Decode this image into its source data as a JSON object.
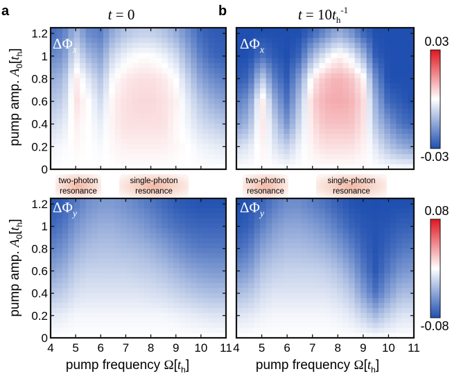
{
  "colors": {
    "low": "#1f4fb0",
    "mid": "#ffffff",
    "high": "#e01520",
    "resonance_fill": "#f2b9a6"
  },
  "panels": {
    "a": {
      "letter": "a",
      "title_var": "t",
      "title_eq": " = 0",
      "title_sup": ""
    },
    "b": {
      "letter": "b",
      "title_var": "t",
      "title_eq": " = 10",
      "title_base": "t",
      "title_sub": "h",
      "title_sup": "-1"
    }
  },
  "quantities": {
    "x": {
      "symbol": "ΔΦ",
      "sub": "x"
    },
    "y": {
      "symbol": "ΔΦ",
      "sub": "y"
    }
  },
  "resonances": {
    "two_photon": {
      "line1": "two-photon",
      "line2": "resonance"
    },
    "single_photon": {
      "line1": "single-photon",
      "line2": "resonance"
    }
  },
  "axes": {
    "ylabel": {
      "pre": "pump amp. ",
      "var": "A",
      "var_sub": "0",
      "bracket_open": "[",
      "unit": "t",
      "unit_sub": "h",
      "bracket_close": "]"
    },
    "xlabel": {
      "pre": "pump frequency ",
      "var": "Ω",
      "bracket_open": "[",
      "unit": "t",
      "unit_sub": "h",
      "bracket_close": "]"
    },
    "yticks": [
      "0",
      "0.2",
      "0.4",
      "0.6",
      "0.8",
      "1",
      "1.2"
    ],
    "xticks": [
      "4",
      "5",
      "6",
      "7",
      "8",
      "9",
      "10",
      "11"
    ]
  },
  "colorbars": {
    "x": {
      "max_label": "0.03",
      "min_label": "-0.03"
    },
    "y": {
      "max_label": "0.08",
      "min_label": "-0.08"
    }
  },
  "chart_data": [
    {
      "type": "heatmap",
      "panel": "a",
      "quantity": "ΔΦ_x",
      "time": "t = 0",
      "x_range": [
        4,
        11
      ],
      "y_range": [
        0,
        1.25
      ],
      "clim": [
        -0.03,
        0.03
      ],
      "x": [
        4.0,
        4.5,
        5.0,
        5.5,
        6.0,
        6.5,
        7.0,
        7.5,
        8.0,
        8.5,
        9.0,
        9.5,
        10.0,
        10.5,
        11.0
      ],
      "y": [
        0.0,
        0.2,
        0.4,
        0.6,
        0.8,
        1.0,
        1.2
      ],
      "z": [
        [
          0.0,
          0.0,
          0.0,
          0.0,
          0.0,
          0.0,
          0.0,
          0.0,
          0.0,
          0.0,
          0.0,
          0.0,
          0.0,
          0.0,
          0.0
        ],
        [
          -0.002,
          -0.001,
          0.001,
          0.0,
          -0.001,
          0.001,
          0.002,
          0.002,
          0.002,
          0.002,
          0.001,
          0.0,
          -0.002,
          -0.003,
          -0.004
        ],
        [
          -0.006,
          -0.004,
          0.002,
          0.0,
          -0.003,
          0.002,
          0.004,
          0.004,
          0.004,
          0.004,
          0.001,
          -0.002,
          -0.006,
          -0.008,
          -0.01
        ],
        [
          -0.01,
          -0.008,
          0.004,
          0.0,
          -0.006,
          0.002,
          0.004,
          0.005,
          0.005,
          0.004,
          0.002,
          -0.004,
          -0.01,
          -0.014,
          -0.016
        ],
        [
          -0.014,
          -0.012,
          0.003,
          -0.004,
          -0.01,
          0.0,
          0.003,
          0.004,
          0.004,
          0.003,
          0.0,
          -0.008,
          -0.016,
          -0.02,
          -0.022
        ],
        [
          -0.02,
          -0.018,
          -0.004,
          -0.012,
          -0.016,
          -0.006,
          -0.002,
          0.0,
          0.0,
          -0.002,
          -0.006,
          -0.014,
          -0.022,
          -0.026,
          -0.027
        ],
        [
          -0.025,
          -0.022,
          -0.012,
          -0.02,
          -0.022,
          -0.014,
          -0.01,
          -0.008,
          -0.008,
          -0.01,
          -0.014,
          -0.02,
          -0.026,
          -0.028,
          -0.028
        ]
      ]
    },
    {
      "type": "heatmap",
      "panel": "b",
      "quantity": "ΔΦ_x",
      "time": "t = 10 t_h^-1",
      "x_range": [
        4,
        11
      ],
      "y_range": [
        0,
        1.25
      ],
      "clim": [
        -0.03,
        0.03
      ],
      "x": [
        4.0,
        4.5,
        5.0,
        5.5,
        6.0,
        6.5,
        7.0,
        7.5,
        8.0,
        8.5,
        9.0,
        9.5,
        10.0,
        10.5,
        11.0
      ],
      "y": [
        0.0,
        0.2,
        0.4,
        0.6,
        0.8,
        1.0,
        1.2
      ],
      "z": [
        [
          0.0,
          0.0,
          0.0,
          0.0,
          0.0,
          0.0,
          0.0,
          0.0,
          0.0,
          0.0,
          0.0,
          0.0,
          0.0,
          0.0,
          0.0
        ],
        [
          -0.006,
          -0.004,
          0.002,
          -0.004,
          -0.008,
          -0.002,
          0.002,
          0.004,
          0.004,
          0.004,
          0.002,
          -0.004,
          -0.01,
          -0.014,
          -0.016
        ],
        [
          -0.016,
          -0.012,
          0.004,
          -0.008,
          -0.018,
          -0.006,
          0.004,
          0.008,
          0.008,
          0.008,
          0.004,
          -0.01,
          -0.018,
          -0.024,
          -0.026
        ],
        [
          -0.022,
          -0.018,
          0.004,
          -0.014,
          -0.024,
          -0.01,
          0.006,
          0.01,
          0.011,
          0.01,
          0.005,
          -0.014,
          -0.026,
          -0.028,
          -0.03
        ],
        [
          -0.028,
          -0.026,
          -0.008,
          -0.022,
          -0.028,
          -0.016,
          0.002,
          0.008,
          0.01,
          0.008,
          0.002,
          -0.02,
          -0.03,
          -0.03,
          -0.03
        ],
        [
          -0.03,
          -0.03,
          -0.024,
          -0.028,
          -0.03,
          -0.026,
          -0.012,
          -0.004,
          0.002,
          -0.002,
          -0.012,
          -0.028,
          -0.03,
          -0.03,
          -0.03
        ],
        [
          -0.03,
          -0.03,
          -0.03,
          -0.03,
          -0.03,
          -0.03,
          -0.026,
          -0.02,
          -0.014,
          -0.018,
          -0.026,
          -0.03,
          -0.03,
          -0.03,
          -0.03
        ]
      ]
    },
    {
      "type": "heatmap",
      "panel": "a",
      "quantity": "ΔΦ_y",
      "time": "t = 0",
      "x_range": [
        4,
        11
      ],
      "y_range": [
        0,
        1.25
      ],
      "clim": [
        -0.08,
        0.08
      ],
      "x": [
        4.0,
        4.5,
        5.0,
        5.5,
        6.0,
        6.5,
        7.0,
        7.5,
        8.0,
        8.5,
        9.0,
        9.5,
        10.0,
        10.5,
        11.0
      ],
      "y": [
        0.0,
        0.2,
        0.4,
        0.6,
        0.8,
        1.0,
        1.2
      ],
      "z": [
        [
          0.0,
          0.0,
          0.0,
          0.0,
          0.0,
          0.0,
          0.0,
          0.0,
          0.0,
          0.0,
          0.0,
          0.0,
          0.0,
          0.0,
          0.0
        ],
        [
          -0.01,
          -0.008,
          -0.004,
          -0.004,
          -0.004,
          -0.004,
          -0.004,
          -0.004,
          -0.004,
          -0.004,
          -0.006,
          -0.008,
          -0.01,
          -0.012,
          -0.012
        ],
        [
          -0.026,
          -0.022,
          -0.014,
          -0.012,
          -0.012,
          -0.012,
          -0.012,
          -0.012,
          -0.014,
          -0.016,
          -0.02,
          -0.024,
          -0.028,
          -0.03,
          -0.03
        ],
        [
          -0.042,
          -0.036,
          -0.024,
          -0.02,
          -0.02,
          -0.02,
          -0.02,
          -0.022,
          -0.024,
          -0.028,
          -0.034,
          -0.04,
          -0.044,
          -0.046,
          -0.046
        ],
        [
          -0.056,
          -0.05,
          -0.036,
          -0.03,
          -0.028,
          -0.028,
          -0.03,
          -0.032,
          -0.036,
          -0.042,
          -0.05,
          -0.056,
          -0.06,
          -0.06,
          -0.06
        ],
        [
          -0.068,
          -0.062,
          -0.048,
          -0.04,
          -0.036,
          -0.036,
          -0.04,
          -0.044,
          -0.05,
          -0.058,
          -0.064,
          -0.068,
          -0.07,
          -0.07,
          -0.07
        ],
        [
          -0.076,
          -0.072,
          -0.06,
          -0.05,
          -0.046,
          -0.046,
          -0.05,
          -0.056,
          -0.062,
          -0.068,
          -0.074,
          -0.076,
          -0.078,
          -0.078,
          -0.078
        ]
      ]
    },
    {
      "type": "heatmap",
      "panel": "b",
      "quantity": "ΔΦ_y",
      "time": "t = 10 t_h^-1",
      "x_range": [
        4,
        11
      ],
      "y_range": [
        0,
        1.25
      ],
      "clim": [
        -0.08,
        0.08
      ],
      "x": [
        4.0,
        4.5,
        5.0,
        5.5,
        6.0,
        6.5,
        7.0,
        7.5,
        8.0,
        8.5,
        9.0,
        9.5,
        10.0,
        10.5,
        11.0
      ],
      "y": [
        0.0,
        0.2,
        0.4,
        0.6,
        0.8,
        1.0,
        1.2
      ],
      "z": [
        [
          0.0,
          0.0,
          0.0,
          0.0,
          0.0,
          0.0,
          0.0,
          0.0,
          0.0,
          0.0,
          0.0,
          0.0,
          0.0,
          0.0,
          0.0
        ],
        [
          -0.012,
          -0.01,
          -0.006,
          -0.004,
          -0.004,
          -0.004,
          -0.004,
          -0.004,
          -0.006,
          -0.01,
          -0.02,
          -0.032,
          -0.02,
          -0.012,
          -0.012
        ],
        [
          -0.03,
          -0.026,
          -0.016,
          -0.012,
          -0.012,
          -0.012,
          -0.012,
          -0.012,
          -0.016,
          -0.024,
          -0.044,
          -0.064,
          -0.044,
          -0.03,
          -0.03
        ],
        [
          -0.05,
          -0.044,
          -0.028,
          -0.022,
          -0.02,
          -0.02,
          -0.02,
          -0.022,
          -0.028,
          -0.04,
          -0.06,
          -0.076,
          -0.06,
          -0.048,
          -0.046
        ],
        [
          -0.066,
          -0.06,
          -0.042,
          -0.034,
          -0.03,
          -0.03,
          -0.032,
          -0.036,
          -0.044,
          -0.056,
          -0.07,
          -0.078,
          -0.07,
          -0.062,
          -0.06
        ],
        [
          -0.076,
          -0.072,
          -0.058,
          -0.046,
          -0.04,
          -0.04,
          -0.044,
          -0.05,
          -0.06,
          -0.07,
          -0.076,
          -0.078,
          -0.076,
          -0.072,
          -0.072
        ],
        [
          -0.08,
          -0.078,
          -0.07,
          -0.06,
          -0.052,
          -0.052,
          -0.058,
          -0.064,
          -0.072,
          -0.078,
          -0.08,
          -0.08,
          -0.08,
          -0.08,
          -0.08
        ]
      ]
    }
  ]
}
